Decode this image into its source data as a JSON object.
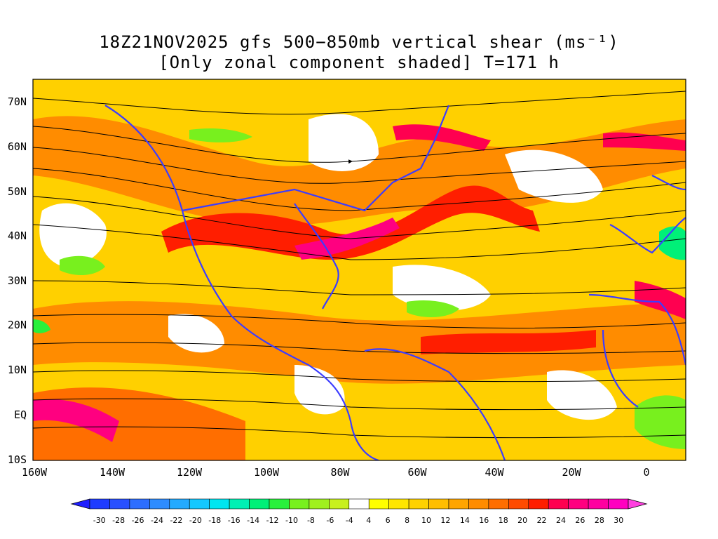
{
  "title": {
    "line1": "18Z21NOV2025 gfs 500−850mb vertical shear (ms⁻¹)",
    "line2": "[Only zonal component shaded] T=171 h"
  },
  "axes": {
    "lat_labels": [
      "70N",
      "60N",
      "50N",
      "40N",
      "30N",
      "20N",
      "10N",
      "EQ",
      "10S"
    ],
    "lon_labels": [
      "160W",
      "140W",
      "120W",
      "100W",
      "80W",
      "60W",
      "40W",
      "20W",
      "0"
    ]
  },
  "colorbar": {
    "labels": [
      "-30",
      "-28",
      "-26",
      "-24",
      "-22",
      "-20",
      "-18",
      "-16",
      "-14",
      "-12",
      "-10",
      "-8",
      "-6",
      "-4",
      "4",
      "6",
      "8",
      "10",
      "12",
      "14",
      "16",
      "18",
      "20",
      "22",
      "24",
      "26",
      "28",
      "30"
    ],
    "colors": [
      "#1e1eff",
      "#1e3cff",
      "#2850ff",
      "#2d6eff",
      "#2d8cff",
      "#23aaff",
      "#14c8ff",
      "#00e6f0",
      "#00f0b4",
      "#00f078",
      "#28f03c",
      "#78f01e",
      "#a0f01e",
      "#c8f01e",
      "#ffffff",
      "#ffff00",
      "#ffe600",
      "#ffd200",
      "#ffbe00",
      "#ffa500",
      "#ff8c00",
      "#ff6e00",
      "#ff4b00",
      "#ff1e00",
      "#ff0050",
      "#ff0080",
      "#ff00a0",
      "#ff00c0",
      "#ff40e0"
    ]
  },
  "colors": {
    "coastline": "#3c3cff",
    "streamline": "#000000"
  }
}
